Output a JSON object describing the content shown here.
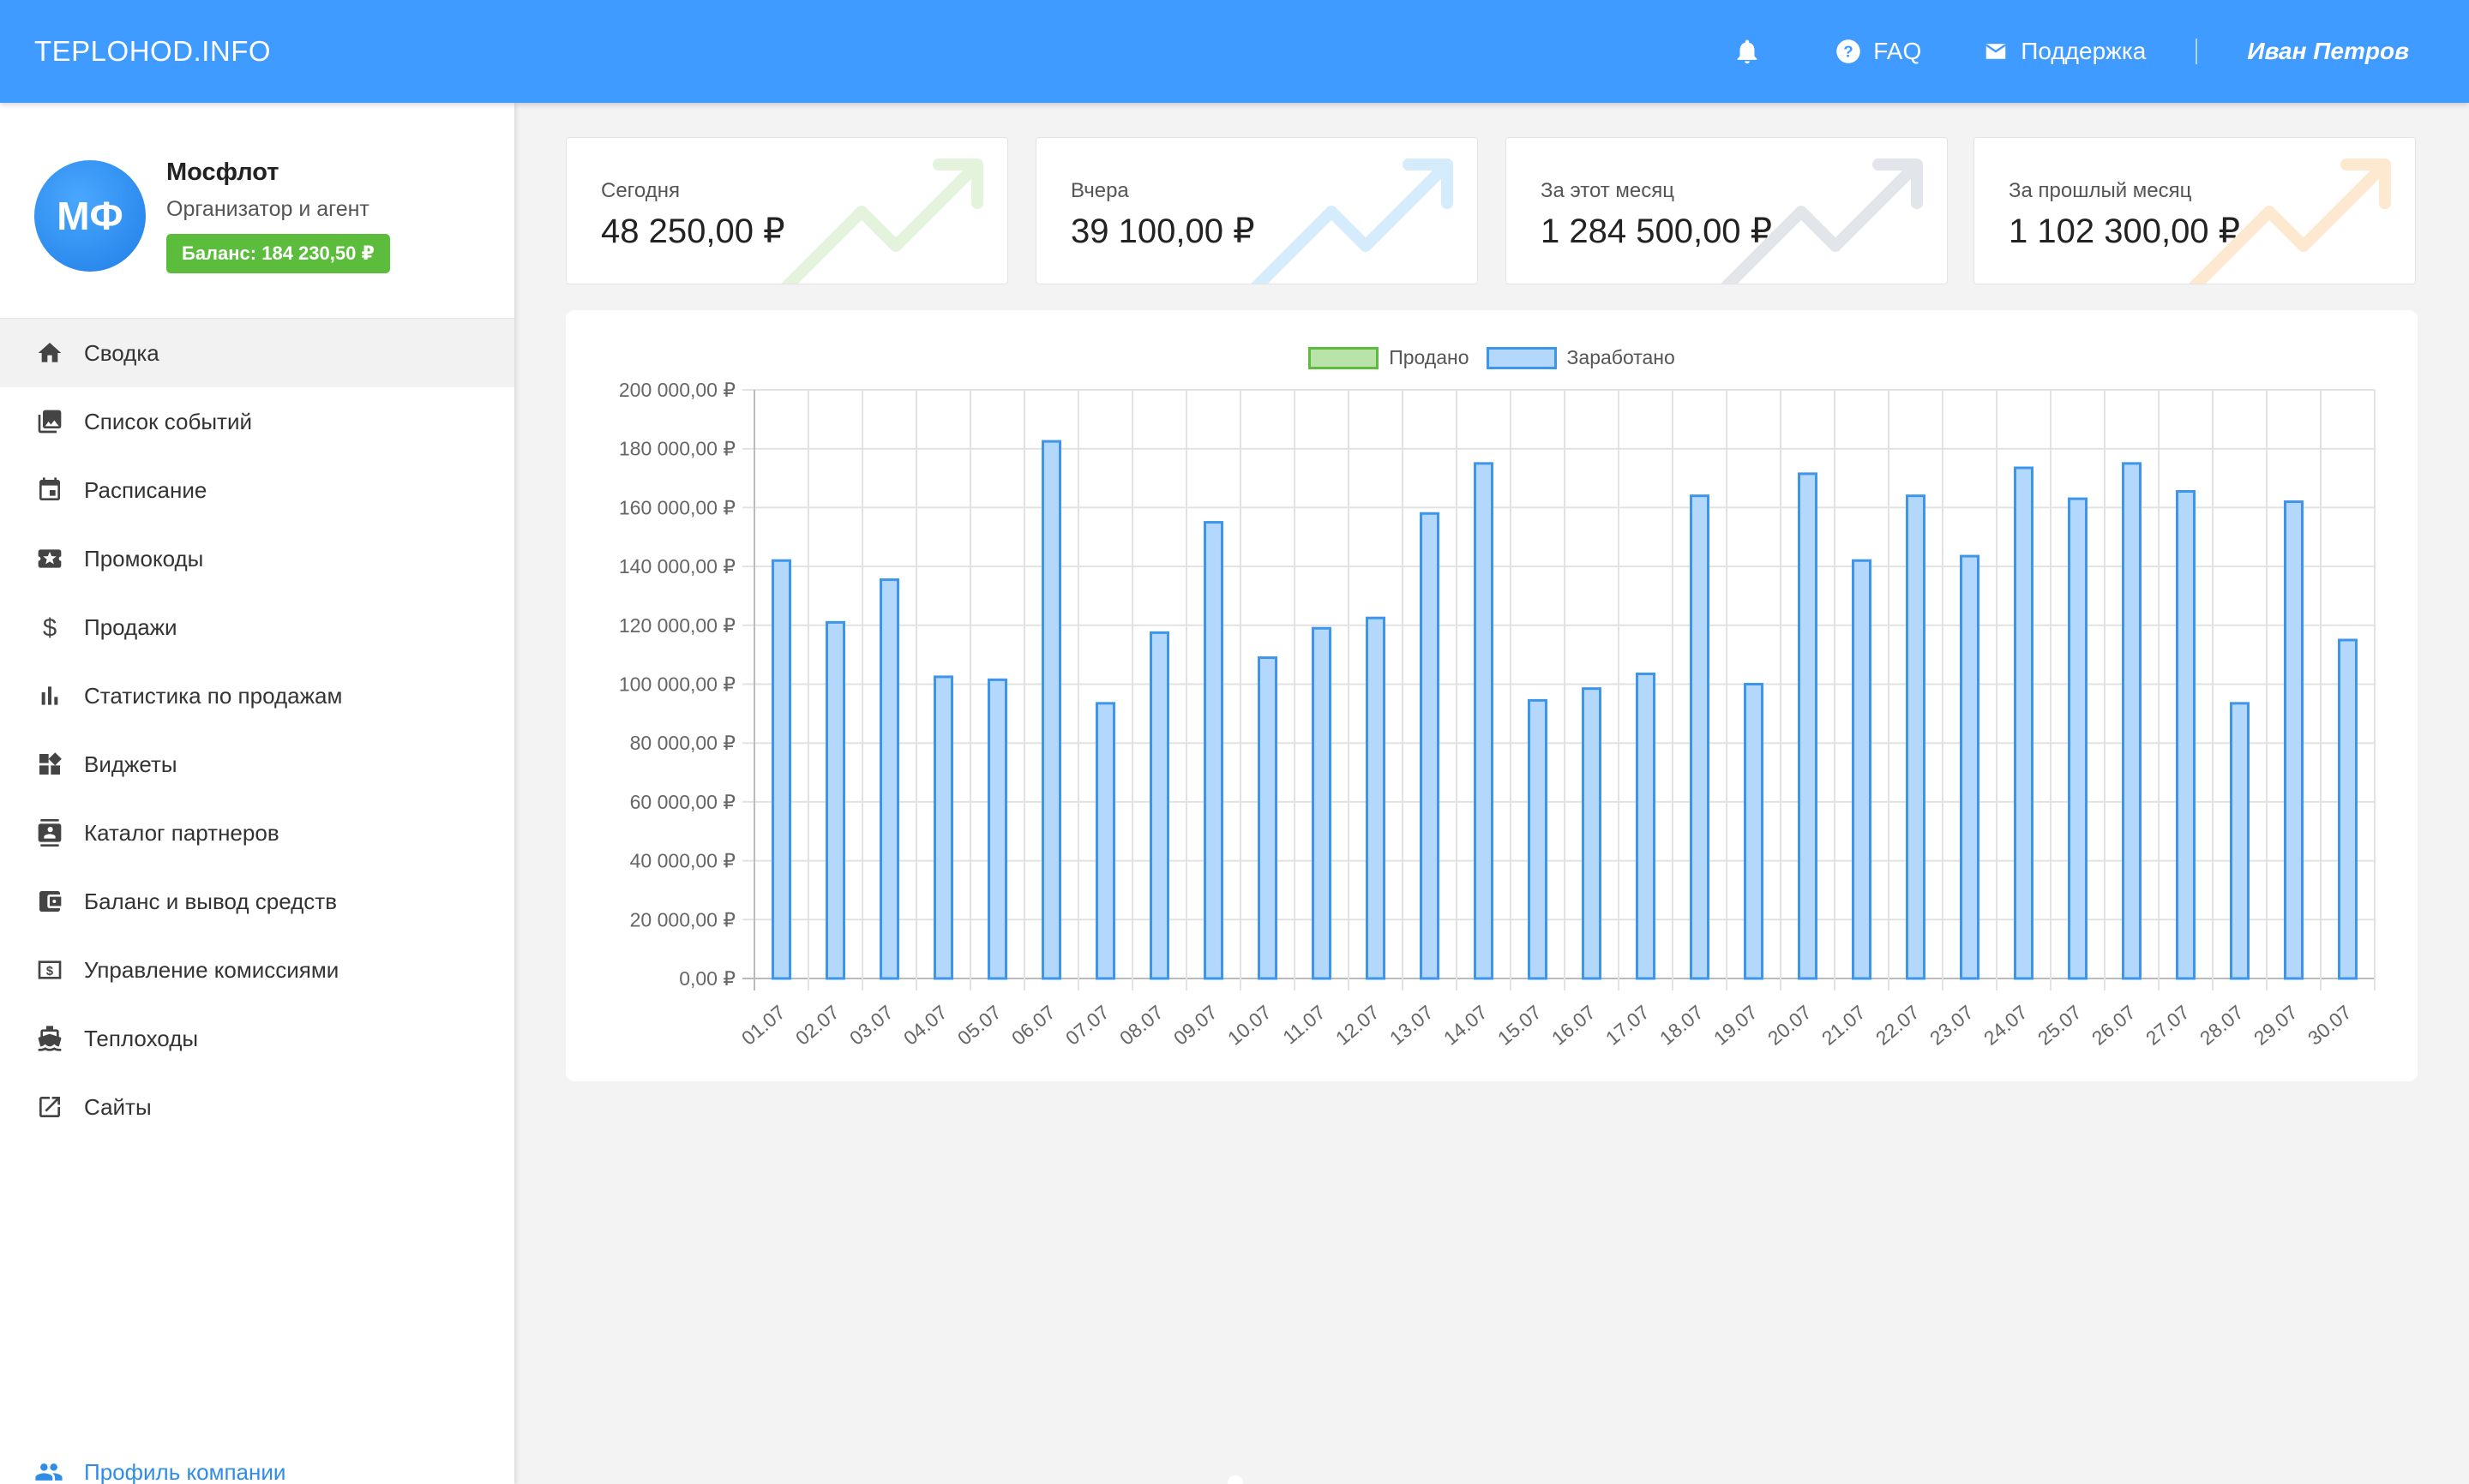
{
  "header": {
    "brand": "TEPLOHOD.INFO",
    "faq_label": "FAQ",
    "support_label": "Поддержка",
    "user_name": "Иван Петров",
    "bar_color": "#3f9bff"
  },
  "org": {
    "initials": "МФ",
    "name": "Мосфлот",
    "role": "Организатор и агент",
    "balance": "Баланс: 184 230,50 ₽"
  },
  "sidebar": {
    "items": [
      {
        "label": "Сводка",
        "icon": "home-icon",
        "active": true
      },
      {
        "label": "Список событий",
        "icon": "photo-library-icon"
      },
      {
        "label": "Расписание",
        "icon": "calendar-icon"
      },
      {
        "label": "Промокоды",
        "icon": "ticket-icon"
      },
      {
        "label": "Продажи",
        "icon": "dollar-icon"
      },
      {
        "label": "Статистика по продажам",
        "icon": "bar-chart-icon"
      },
      {
        "label": "Виджеты",
        "icon": "widgets-icon"
      },
      {
        "label": "Каталог партнеров",
        "icon": "contact-card-icon"
      },
      {
        "label": "Баланс и вывод средств",
        "icon": "wallet-icon"
      },
      {
        "label": "Управление комиссиями",
        "icon": "money-icon"
      },
      {
        "label": "Теплоходы",
        "icon": "ship-icon"
      },
      {
        "label": "Сайты",
        "icon": "external-link-icon"
      }
    ],
    "profile_link": "Профиль компании"
  },
  "stats": [
    {
      "label": "Сегодня",
      "value": "48 250,00 ₽",
      "color": "#e3f3dc"
    },
    {
      "label": "Вчера",
      "value": "39 100,00 ₽",
      "color": "#d4ecfb"
    },
    {
      "label": "За этот месяц",
      "value": "1 284 500,00 ₽",
      "color": "#e2e6ea"
    },
    {
      "label": "За прошлый месяц",
      "value": "1 102 300,00 ₽",
      "color": "#fde9cf"
    }
  ],
  "chart_data": {
    "type": "bar",
    "legend": [
      {
        "name": "Продано",
        "fill": "#b9e3a9",
        "stroke": "#5cbd3c"
      },
      {
        "name": "Заработано",
        "fill": "#b3d8fb",
        "stroke": "#3d95ec"
      }
    ],
    "legend_position": "top",
    "grid": true,
    "ylim": [
      0,
      200000
    ],
    "y_ticks": [
      {
        "v": 0,
        "label": "0,00 ₽"
      },
      {
        "v": 20000,
        "label": "20 000,00 ₽"
      },
      {
        "v": 40000,
        "label": "40 000,00 ₽"
      },
      {
        "v": 60000,
        "label": "60 000,00 ₽"
      },
      {
        "v": 80000,
        "label": "80 000,00 ₽"
      },
      {
        "v": 100000,
        "label": "100 000,00 ₽"
      },
      {
        "v": 120000,
        "label": "120 000,00 ₽"
      },
      {
        "v": 140000,
        "label": "140 000,00 ₽"
      },
      {
        "v": 160000,
        "label": "160 000,00 ₽"
      },
      {
        "v": 180000,
        "label": "180 000,00 ₽"
      },
      {
        "v": 200000,
        "label": "200 000,00 ₽"
      }
    ],
    "categories": [
      "01.07",
      "02.07",
      "03.07",
      "04.07",
      "05.07",
      "06.07",
      "07.07",
      "08.07",
      "09.07",
      "10.07",
      "11.07",
      "12.07",
      "13.07",
      "14.07",
      "15.07",
      "16.07",
      "17.07",
      "18.07",
      "19.07",
      "20.07",
      "21.07",
      "22.07",
      "23.07",
      "24.07",
      "25.07",
      "26.07",
      "27.07",
      "28.07",
      "29.07",
      "30.07"
    ],
    "series": [
      {
        "name": "Продано",
        "values": [
          0,
          0,
          0,
          0,
          0,
          0,
          0,
          0,
          0,
          0,
          0,
          0,
          0,
          0,
          0,
          0,
          0,
          0,
          0,
          0,
          0,
          0,
          0,
          0,
          0,
          0,
          0,
          0,
          0,
          0
        ]
      },
      {
        "name": "Заработано",
        "values": [
          142000,
          121000,
          135500,
          102500,
          101500,
          182500,
          93500,
          117500,
          155000,
          109000,
          119000,
          122500,
          158000,
          175000,
          94500,
          98500,
          103500,
          164000,
          100000,
          171500,
          142000,
          164000,
          143500,
          173500,
          163000,
          175000,
          165500,
          93500,
          162000,
          115000
        ]
      }
    ]
  }
}
